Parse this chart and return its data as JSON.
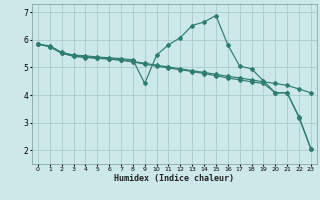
{
  "xlabel": "Humidex (Indice chaleur)",
  "background_color": "#cce8e8",
  "grid_color": "#aacccc",
  "line_color": "#2e7d72",
  "xlim": [
    -0.5,
    23.5
  ],
  "ylim": [
    1.5,
    7.3
  ],
  "yticks": [
    2,
    3,
    4,
    5,
    6,
    7
  ],
  "xticks": [
    0,
    1,
    2,
    3,
    4,
    5,
    6,
    7,
    8,
    9,
    10,
    11,
    12,
    13,
    14,
    15,
    16,
    17,
    18,
    19,
    20,
    21,
    22,
    23
  ],
  "series1_x": [
    0,
    1,
    2,
    3,
    4,
    5,
    6,
    7,
    8,
    9,
    10,
    11,
    12,
    13,
    14,
    15,
    16,
    17,
    18,
    19,
    20,
    21,
    22,
    23
  ],
  "series1_y": [
    5.85,
    5.78,
    5.55,
    5.45,
    5.42,
    5.38,
    5.35,
    5.32,
    5.28,
    4.42,
    5.45,
    5.82,
    6.08,
    6.52,
    6.65,
    6.88,
    5.82,
    5.05,
    4.95,
    4.52,
    4.08,
    4.08,
    3.22,
    2.05
  ],
  "series2_x": [
    0,
    1,
    2,
    3,
    4,
    5,
    6,
    7,
    8,
    9,
    10,
    11,
    12,
    13,
    14,
    15,
    16,
    17,
    18,
    19,
    20,
    21,
    22,
    23
  ],
  "series2_y": [
    5.85,
    5.75,
    5.52,
    5.42,
    5.38,
    5.35,
    5.32,
    5.28,
    5.22,
    5.15,
    5.08,
    5.02,
    4.95,
    4.88,
    4.82,
    4.75,
    4.68,
    4.62,
    4.55,
    4.48,
    4.42,
    4.35,
    4.22,
    4.08
  ],
  "series3_x": [
    0,
    1,
    2,
    3,
    4,
    5,
    6,
    7,
    8,
    9,
    10,
    11,
    12,
    13,
    14,
    15,
    16,
    17,
    18,
    19,
    20,
    21,
    22,
    23
  ],
  "series3_y": [
    5.85,
    5.75,
    5.52,
    5.4,
    5.36,
    5.33,
    5.3,
    5.26,
    5.2,
    5.12,
    5.05,
    4.98,
    4.92,
    4.85,
    4.78,
    4.7,
    4.62,
    4.55,
    4.48,
    4.42,
    4.08,
    4.08,
    3.18,
    2.05
  ]
}
